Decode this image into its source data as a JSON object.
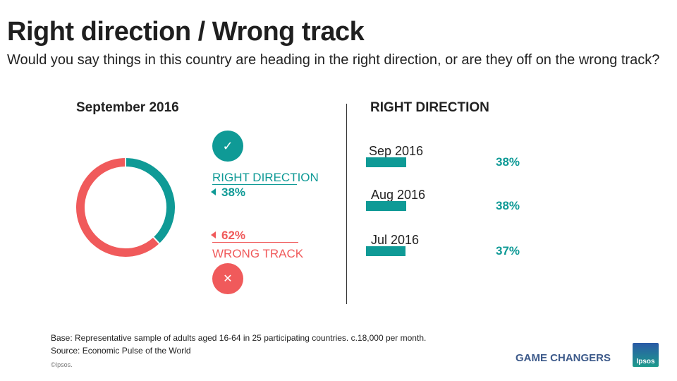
{
  "title": "Right direction / Wrong track",
  "subtitle": "Would you say things in this country are heading in the right direction, or are they off on the wrong track?",
  "colors": {
    "right": "#0f9a96",
    "wrong": "#f05a5b",
    "tagline": "#3d5a8a"
  },
  "chart_data": [
    {
      "type": "pie",
      "title": "September 2016",
      "style": "donut",
      "slices": [
        {
          "name": "RIGHT DIRECTION",
          "value": 38,
          "label": "38%",
          "color": "#0f9a96"
        },
        {
          "name": "WRONG TRACK",
          "value": 62,
          "label": "62%",
          "color": "#f05a5b"
        }
      ],
      "legend": {
        "right_icon": "check-icon",
        "wrong_icon": "x-icon",
        "right_icon_glyph": "✓",
        "wrong_icon_glyph": "✕"
      }
    },
    {
      "type": "bar",
      "orientation": "horizontal",
      "title": "RIGHT DIRECTION",
      "categories": [
        "Sep 2016",
        "Aug 2016",
        "Jul 2016"
      ],
      "values": [
        38,
        38,
        37
      ],
      "labels": [
        "38%",
        "38%",
        "37%"
      ],
      "color": "#0f9a96",
      "grid": false
    }
  ],
  "footer": {
    "base": "Base: Representative sample of adults aged 16-64 in 25 participating countries. c.18,000 per month.",
    "source": "Source: Economic Pulse of the World",
    "copyright": "©Ipsos.",
    "tagline": "GAME CHANGERS",
    "logo_text": "Ipsos"
  }
}
